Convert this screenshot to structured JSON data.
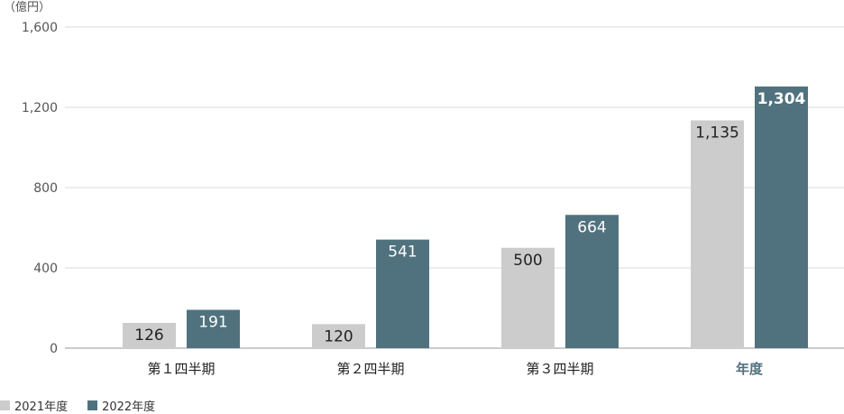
{
  "chart_data": {
    "type": "bar",
    "unit_label": "（億円）",
    "categories": [
      "第１四半期",
      "第２四半期",
      "第３四半期",
      "年度"
    ],
    "emphasized_category": "年度",
    "series": [
      {
        "name": "2021年度",
        "values": [
          126,
          120,
          500,
          1135
        ],
        "labels": [
          "126",
          "120",
          "500",
          "1,135"
        ],
        "color": "#cccccc",
        "label_color": "#222222"
      },
      {
        "name": "2022年度",
        "values": [
          191,
          541,
          664,
          1304
        ],
        "labels": [
          "191",
          "541",
          "664",
          "1,304"
        ],
        "color": "#50727e",
        "label_color": "#ffffff"
      }
    ],
    "ylim": [
      0,
      1600
    ],
    "yticks": [
      0,
      400,
      800,
      1200,
      1600
    ],
    "ytick_labels": [
      "0",
      "400",
      "800",
      "1,200",
      "1,600"
    ],
    "grid": true,
    "legend_position": "bottom-left",
    "emphasis_color": "#50727e"
  }
}
